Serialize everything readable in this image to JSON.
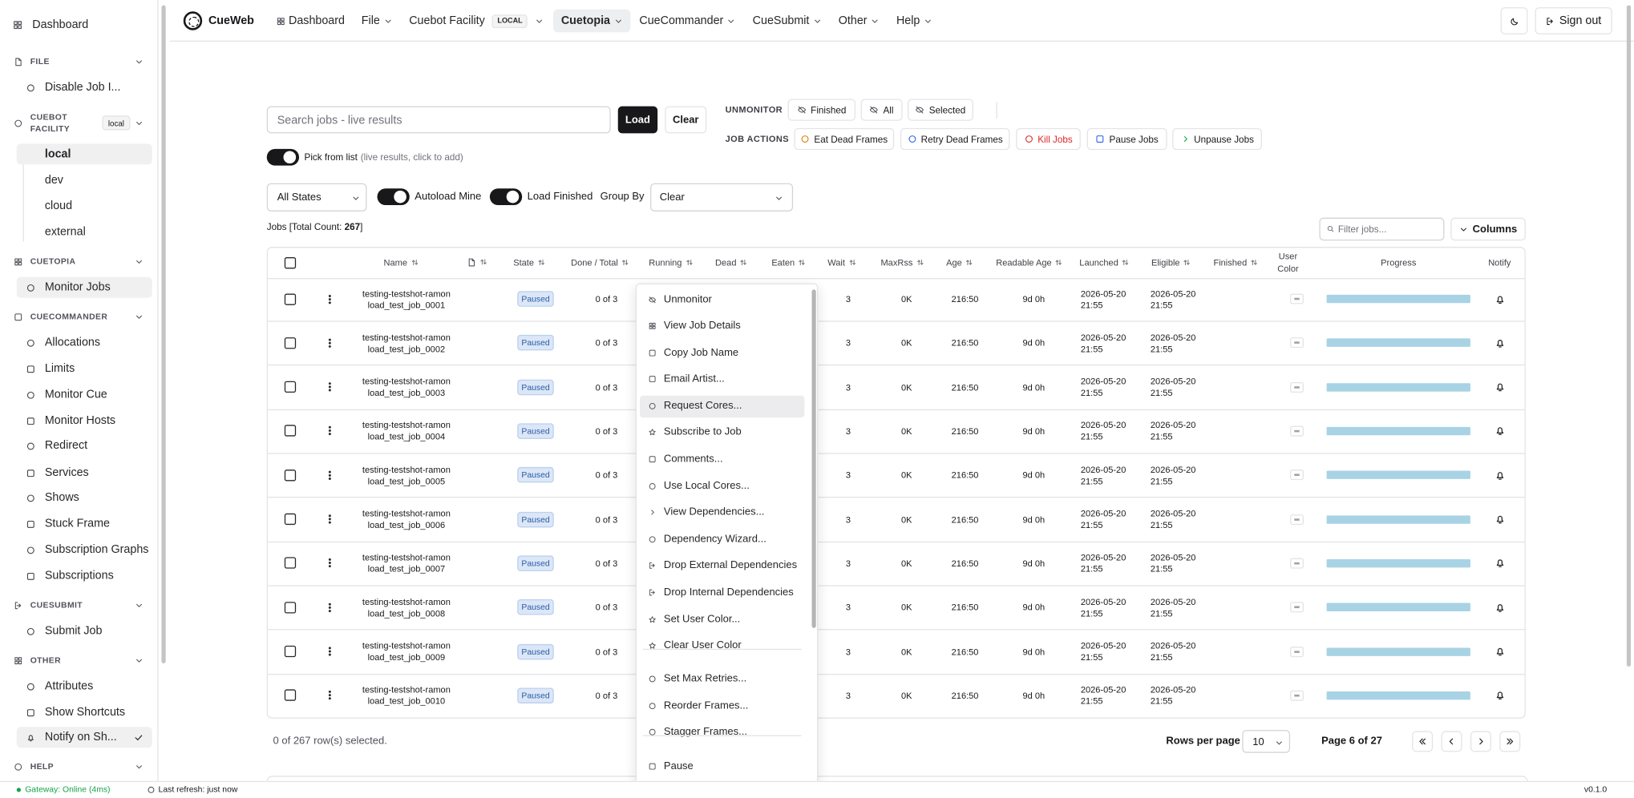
{
  "sidebar": {
    "dashboard": "Dashboard",
    "sections": [
      {
        "title": "FILE",
        "items": [
          "Disable Job I..."
        ]
      },
      {
        "title": "CUEBOT FACILITY",
        "badge": "local",
        "items": [
          "local",
          "dev",
          "cloud",
          "external"
        ]
      },
      {
        "title": "CUETOPIA",
        "items": [
          "Monitor Jobs"
        ]
      },
      {
        "title": "CUECOMMANDER",
        "items": [
          "Allocations",
          "Limits",
          "Monitor Cue",
          "Monitor Hosts",
          "Redirect",
          "Services",
          "Shows",
          "Stuck Frame",
          "Subscription Graphs",
          "Subscriptions"
        ]
      },
      {
        "title": "CUESUBMIT",
        "items": [
          "Submit Job"
        ]
      },
      {
        "title": "OTHER",
        "items": [
          "Attributes",
          "Show Shortcuts",
          "Notify on Sh..."
        ]
      },
      {
        "title": "HELP",
        "items": []
      }
    ]
  },
  "topnav": {
    "brand": "CueWeb",
    "items": [
      "Dashboard",
      "File",
      "Cuebot Facility",
      "Cuetopia",
      "CueCommander",
      "CueSubmit",
      "Other",
      "Help"
    ],
    "badge": "LOCAL",
    "sign_out": "Sign out"
  },
  "toolbar": {
    "search_placeholder": "Search jobs - live results",
    "load": "Load",
    "clear": "Clear",
    "pick_from_list": "Pick from list",
    "pick_hint": "(live results, click to add)",
    "unmonitor_label": "UNMONITOR",
    "unmonitor_buttons": [
      "Finished",
      "All",
      "Selected"
    ],
    "job_actions_label": "JOB ACTIONS",
    "job_actions": [
      "Eat Dead Frames",
      "Retry Dead Frames",
      "Kill Jobs",
      "Pause Jobs",
      "Unpause Jobs"
    ]
  },
  "filters": {
    "state": "All States",
    "autoload": "Autoload Mine",
    "load_finished": "Load Finished",
    "group_by_label": "Group By",
    "group_by": "Clear",
    "jobs_label": "Jobs [Total Count: ",
    "total_count": "267",
    "jobs_suffix": "]",
    "filter_placeholder": "Filter jobs...",
    "columns": "Columns"
  },
  "table": {
    "headers": [
      "Name",
      "State",
      "Done / Total",
      "Running",
      "Dead",
      "Eaten",
      "Wait",
      "MaxRss",
      "Age",
      "Readable Age",
      "Launched",
      "Eligible",
      "Finished",
      "User Color",
      "Progress",
      "Notify"
    ],
    "rows": [
      {
        "name": [
          "testing-testshot-ramon",
          "load_test_job_0001"
        ],
        "state": "Paused",
        "done": "0 of 3",
        "wait": "3",
        "maxrss": "0K",
        "age": "216:50",
        "readable_age": "9d 0h",
        "launched": [
          "2026-05-20",
          "21:55"
        ],
        "eligible": [
          "2026-05-20",
          "21:55"
        ]
      },
      {
        "name": [
          "testing-testshot-ramon",
          "load_test_job_0002"
        ],
        "state": "Paused",
        "done": "0 of 3",
        "wait": "3",
        "maxrss": "0K",
        "age": "216:50",
        "readable_age": "9d 0h",
        "launched": [
          "2026-05-20",
          "21:55"
        ],
        "eligible": [
          "2026-05-20",
          "21:55"
        ]
      },
      {
        "name": [
          "testing-testshot-ramon",
          "load_test_job_0003"
        ],
        "state": "Paused",
        "done": "0 of 3",
        "wait": "3",
        "maxrss": "0K",
        "age": "216:50",
        "readable_age": "9d 0h",
        "launched": [
          "2026-05-20",
          "21:55"
        ],
        "eligible": [
          "2026-05-20",
          "21:55"
        ]
      },
      {
        "name": [
          "testing-testshot-ramon",
          "load_test_job_0004"
        ],
        "state": "Paused",
        "done": "0 of 3",
        "wait": "3",
        "maxrss": "0K",
        "age": "216:50",
        "readable_age": "9d 0h",
        "launched": [
          "2026-05-20",
          "21:55"
        ],
        "eligible": [
          "2026-05-20",
          "21:55"
        ]
      },
      {
        "name": [
          "testing-testshot-ramon",
          "load_test_job_0005"
        ],
        "state": "Paused",
        "done": "0 of 3",
        "wait": "3",
        "maxrss": "0K",
        "age": "216:50",
        "readable_age": "9d 0h",
        "launched": [
          "2026-05-20",
          "21:55"
        ],
        "eligible": [
          "2026-05-20",
          "21:55"
        ]
      },
      {
        "name": [
          "testing-testshot-ramon",
          "load_test_job_0006"
        ],
        "state": "Paused",
        "done": "0 of 3",
        "wait": "3",
        "maxrss": "0K",
        "age": "216:50",
        "readable_age": "9d 0h",
        "launched": [
          "2026-05-20",
          "21:55"
        ],
        "eligible": [
          "2026-05-20",
          "21:55"
        ]
      },
      {
        "name": [
          "testing-testshot-ramon",
          "load_test_job_0007"
        ],
        "state": "Paused",
        "done": "0 of 3",
        "wait": "3",
        "maxrss": "0K",
        "age": "216:50",
        "readable_age": "9d 0h",
        "launched": [
          "2026-05-20",
          "21:55"
        ],
        "eligible": [
          "2026-05-20",
          "21:55"
        ]
      },
      {
        "name": [
          "testing-testshot-ramon",
          "load_test_job_0008"
        ],
        "state": "Paused",
        "done": "0 of 3",
        "wait": "3",
        "maxrss": "0K",
        "age": "216:50",
        "readable_age": "9d 0h",
        "launched": [
          "2026-05-20",
          "21:55"
        ],
        "eligible": [
          "2026-05-20",
          "21:55"
        ]
      },
      {
        "name": [
          "testing-testshot-ramon",
          "load_test_job_0009"
        ],
        "state": "Paused",
        "done": "0 of 3",
        "wait": "3",
        "maxrss": "0K",
        "age": "216:50",
        "readable_age": "9d 0h",
        "launched": [
          "2026-05-20",
          "21:55"
        ],
        "eligible": [
          "2026-05-20",
          "21:55"
        ]
      },
      {
        "name": [
          "testing-testshot-ramon",
          "load_test_job_0010"
        ],
        "state": "Paused",
        "done": "0 of 3",
        "wait": "3",
        "maxrss": "0K",
        "age": "216:50",
        "readable_age": "9d 0h",
        "launched": [
          "2026-05-20",
          "21:55"
        ],
        "eligible": [
          "2026-05-20",
          "21:55"
        ]
      }
    ]
  },
  "context_menu": {
    "groups": [
      [
        "Unmonitor",
        "View Job Details",
        "Copy Job Name",
        "Email Artist...",
        "Request Cores...",
        "Subscribe to Job",
        "Comments...",
        "Use Local Cores...",
        "View Dependencies...",
        "Dependency Wizard...",
        "Drop External Dependencies",
        "Drop Internal Dependencies",
        "Set User Color...",
        "Clear User Color"
      ],
      [
        "Set Max Retries...",
        "Reorder Frames...",
        "Stagger Frames..."
      ],
      [
        "Pause"
      ]
    ]
  },
  "footer": {
    "selected": "0 of 267 row(s) selected.",
    "rows_per_page_label": "Rows per page",
    "rows_per_page": "10",
    "page": "Page 6 of 27"
  },
  "status": {
    "gateway": "Gateway: Online (4ms)",
    "refresh": "Last refresh: just now",
    "version": "v0.1.0"
  }
}
